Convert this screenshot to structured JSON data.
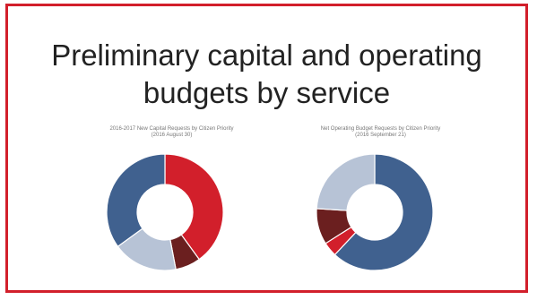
{
  "slide": {
    "title_line1": "Preliminary capital and operating",
    "title_line2": "budgets by service",
    "frame_color": "#d21f2b"
  },
  "chart_data": [
    {
      "type": "pie",
      "title": "2016-2017 New Capital Requests by Citizen Priority",
      "subtitle": "(2016 August 30)",
      "slices": [
        {
          "label": "",
          "value": 40,
          "color": "#d21f2b"
        },
        {
          "label": "",
          "value": 7,
          "color": "#6b1f1f"
        },
        {
          "label": "",
          "value": 18,
          "color": "#b7c3d6"
        },
        {
          "label": "",
          "value": 35,
          "color": "#40618f"
        }
      ]
    },
    {
      "type": "pie",
      "title": "Net Operating Budget Requests by Citizen Priority",
      "subtitle": "(2016 September 21)",
      "slices": [
        {
          "label": "",
          "value": 62,
          "color": "#40618f"
        },
        {
          "label": "",
          "value": 4,
          "color": "#d21f2b"
        },
        {
          "label": "",
          "value": 10,
          "color": "#6b1f1f"
        },
        {
          "label": "",
          "value": 24,
          "color": "#b7c3d6"
        }
      ]
    }
  ]
}
